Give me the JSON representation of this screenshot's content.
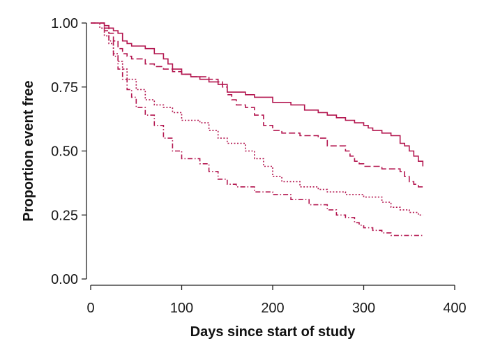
{
  "chart_data": {
    "type": "line",
    "title": "",
    "xlabel": "Days since start of study",
    "ylabel": "Proportion event free",
    "xlim": [
      0,
      400
    ],
    "ylim": [
      0,
      1
    ],
    "x_ticks": [
      0,
      100,
      200,
      300,
      400
    ],
    "x_tick_labels": [
      "0",
      "100",
      "200",
      "300",
      "400"
    ],
    "y_ticks": [
      0,
      0.25,
      0.5,
      0.75,
      1
    ],
    "y_tick_labels": [
      "0.00",
      "0.25",
      "0.50",
      "0.75",
      "1.00"
    ],
    "grid": false,
    "legend": "none",
    "color": "#b3164f",
    "series": [
      {
        "style": "solid",
        "x": [
          0,
          15,
          20,
          25,
          30,
          35,
          40,
          45,
          60,
          70,
          80,
          85,
          90,
          100,
          110,
          120,
          130,
          140,
          150,
          160,
          170,
          180,
          200,
          220,
          235,
          250,
          260,
          270,
          280,
          290,
          300,
          305,
          310,
          320,
          330,
          340,
          345,
          350,
          355,
          360,
          365
        ],
        "y": [
          1.0,
          0.99,
          0.98,
          0.97,
          0.96,
          0.93,
          0.92,
          0.91,
          0.9,
          0.88,
          0.86,
          0.84,
          0.82,
          0.8,
          0.79,
          0.78,
          0.77,
          0.76,
          0.73,
          0.73,
          0.72,
          0.71,
          0.69,
          0.68,
          0.66,
          0.65,
          0.64,
          0.63,
          0.62,
          0.61,
          0.6,
          0.59,
          0.58,
          0.57,
          0.56,
          0.53,
          0.52,
          0.5,
          0.48,
          0.46,
          0.44
        ]
      },
      {
        "style": "dashed",
        "x": [
          0,
          15,
          20,
          25,
          30,
          35,
          40,
          45,
          60,
          70,
          80,
          90,
          100,
          110,
          130,
          140,
          145,
          150,
          155,
          160,
          170,
          180,
          190,
          200,
          210,
          230,
          250,
          260,
          280,
          285,
          290,
          295,
          300,
          320,
          340,
          345,
          350,
          355,
          360,
          365
        ],
        "y": [
          1.0,
          0.98,
          0.96,
          0.93,
          0.9,
          0.88,
          0.87,
          0.86,
          0.84,
          0.83,
          0.82,
          0.81,
          0.8,
          0.79,
          0.78,
          0.77,
          0.75,
          0.72,
          0.7,
          0.68,
          0.67,
          0.64,
          0.6,
          0.58,
          0.57,
          0.56,
          0.55,
          0.52,
          0.5,
          0.48,
          0.46,
          0.45,
          0.44,
          0.43,
          0.42,
          0.4,
          0.38,
          0.37,
          0.36,
          0.35
        ]
      },
      {
        "style": "dotted",
        "x": [
          0,
          10,
          15,
          20,
          25,
          30,
          35,
          40,
          50,
          60,
          70,
          80,
          90,
          100,
          120,
          130,
          140,
          150,
          170,
          180,
          190,
          200,
          210,
          230,
          250,
          260,
          280,
          300,
          320,
          330,
          340,
          350,
          360,
          365
        ],
        "y": [
          1.0,
          0.98,
          0.95,
          0.92,
          0.88,
          0.85,
          0.82,
          0.78,
          0.74,
          0.7,
          0.68,
          0.67,
          0.65,
          0.62,
          0.61,
          0.58,
          0.55,
          0.53,
          0.5,
          0.47,
          0.44,
          0.4,
          0.38,
          0.36,
          0.35,
          0.34,
          0.33,
          0.32,
          0.3,
          0.28,
          0.27,
          0.26,
          0.25,
          0.25
        ]
      },
      {
        "style": "dash-dot",
        "x": [
          0,
          15,
          20,
          25,
          30,
          35,
          40,
          45,
          50,
          60,
          70,
          80,
          90,
          100,
          120,
          130,
          140,
          150,
          160,
          180,
          200,
          220,
          240,
          260,
          270,
          280,
          290,
          295,
          300,
          310,
          320,
          330,
          340,
          365
        ],
        "y": [
          1.0,
          0.97,
          0.93,
          0.87,
          0.82,
          0.78,
          0.74,
          0.71,
          0.67,
          0.64,
          0.6,
          0.55,
          0.5,
          0.47,
          0.45,
          0.42,
          0.39,
          0.37,
          0.36,
          0.34,
          0.33,
          0.31,
          0.29,
          0.27,
          0.25,
          0.24,
          0.22,
          0.21,
          0.2,
          0.19,
          0.18,
          0.17,
          0.17,
          0.17
        ]
      }
    ]
  }
}
